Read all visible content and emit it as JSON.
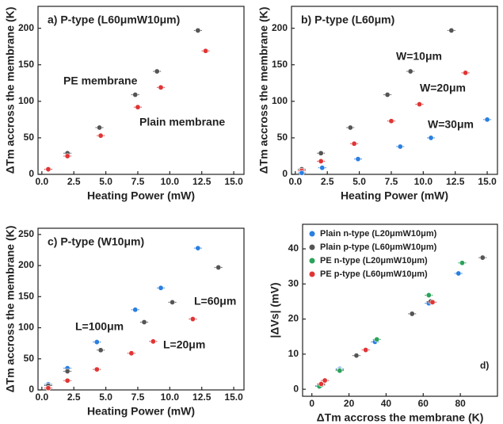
{
  "chart_data": [
    {
      "type": "scatter",
      "title": "a) P-type (L60μmW10μm)",
      "xlabel": "Heating Power (mW)",
      "ylabel": "ΔTm accross the membrane (K)",
      "xlim": [
        -0.3,
        15.8
      ],
      "ylim": [
        0,
        230
      ],
      "xticks": [
        {
          "value": 0,
          "label": "0.0"
        },
        {
          "value": 2.5,
          "label": "2.5"
        },
        {
          "value": 5,
          "label": "5.0"
        },
        {
          "value": 7.5,
          "label": "7.5"
        },
        {
          "value": 10,
          "label": "10.0"
        },
        {
          "value": 12.5,
          "label": "12.5"
        },
        {
          "value": 15,
          "label": "15.0"
        }
      ],
      "yticks": [
        0,
        50,
        100,
        150,
        200
      ],
      "series": [
        {
          "name": "PE membrane",
          "color": "#555555",
          "x": [
            0.5,
            2,
            4.5,
            7.3,
            9,
            12.2
          ],
          "values": [
            7,
            29,
            64,
            109,
            141,
            197
          ]
        },
        {
          "name": "Plain membrane",
          "color": "#e03535",
          "x": [
            0.5,
            2,
            4.6,
            7.5,
            9.3,
            12.8
          ],
          "values": [
            7,
            25,
            53,
            92,
            119,
            169
          ]
        }
      ]
    },
    {
      "type": "scatter",
      "title": "b) P-type (L60μm)",
      "xlabel": "Heating Power (mW)",
      "ylabel": "ΔTm accross the membrane (K)",
      "xlim": [
        -0.3,
        15.8
      ],
      "ylim": [
        0,
        230
      ],
      "xticks": [
        {
          "value": 0,
          "label": "0.0"
        },
        {
          "value": 2.5,
          "label": "2.5"
        },
        {
          "value": 5,
          "label": "5.0"
        },
        {
          "value": 7.5,
          "label": "7.5"
        },
        {
          "value": 10,
          "label": "10.0"
        },
        {
          "value": 12.5,
          "label": "12.5"
        },
        {
          "value": 15,
          "label": "15.0"
        }
      ],
      "yticks": [
        0,
        50,
        100,
        150,
        200
      ],
      "series": [
        {
          "name": "W=10μm",
          "color": "#555555",
          "x": [
            0.5,
            2,
            4.3,
            7.2,
            9,
            12.2
          ],
          "values": [
            7,
            29,
            64,
            109,
            141,
            197
          ]
        },
        {
          "name": "W=20μm",
          "color": "#e03535",
          "x": [
            0.5,
            2,
            4.6,
            7.5,
            9.7,
            13.3
          ],
          "values": [
            5,
            18,
            42,
            73,
            96,
            139
          ]
        },
        {
          "name": "W=30μm",
          "color": "#2a7fe0",
          "x": [
            0.5,
            2.1,
            4.9,
            8.2,
            10.6,
            15
          ],
          "values": [
            2,
            9,
            21,
            38,
            50,
            75
          ]
        }
      ]
    },
    {
      "type": "scatter",
      "title": "c) P-type (W10μm)",
      "xlabel": "Heating Power (mW)",
      "ylabel": "ΔTm accross the membrane (K)",
      "xlim": [
        -0.3,
        15.8
      ],
      "ylim": [
        0,
        260
      ],
      "xticks": [
        {
          "value": 0,
          "label": "0.0"
        },
        {
          "value": 2.5,
          "label": "2.5"
        },
        {
          "value": 5,
          "label": "5.0"
        },
        {
          "value": 7.5,
          "label": "7.5"
        },
        {
          "value": 10,
          "label": "10.0"
        },
        {
          "value": 12.5,
          "label": "12.5"
        },
        {
          "value": 15,
          "label": "15.0"
        }
      ],
      "yticks": [
        0,
        50,
        100,
        150,
        200,
        250
      ],
      "series": [
        {
          "name": "L=100μm",
          "color": "#2a7fe0",
          "x": [
            0.5,
            2,
            4.3,
            7.3,
            9.3,
            12.2
          ],
          "values": [
            9,
            35,
            77,
            129,
            164,
            228
          ]
        },
        {
          "name": "L=60μm",
          "color": "#555555",
          "x": [
            0.5,
            2,
            4.6,
            8,
            10.2,
            13.8
          ],
          "values": [
            7,
            30,
            64,
            109,
            141,
            197
          ]
        },
        {
          "name": "L=20μm",
          "color": "#e03535",
          "x": [
            0.5,
            2,
            4.3,
            7,
            8.7,
            11.8
          ],
          "values": [
            3,
            15,
            33,
            59,
            78,
            114
          ]
        }
      ]
    },
    {
      "type": "scatter",
      "annotation": "d)",
      "xlabel": "ΔTm accross the membrane (K)",
      "ylabel": "|ΔVs| (mV)",
      "xlim": [
        -5,
        100
      ],
      "ylim": [
        -2,
        47
      ],
      "xticks": [
        0,
        20,
        40,
        60,
        80
      ],
      "yticks": [
        0,
        10,
        20,
        30,
        40
      ],
      "legend": "upper left",
      "series": [
        {
          "name": "Plain n-type (L20μmW10μm)",
          "color": "#2a7fe0",
          "x": [
            4,
            15,
            34,
            63,
            79
          ],
          "values": [
            1,
            5.8,
            13.5,
            24.5,
            33
          ]
        },
        {
          "name": "Plain p-type (L60μmW10μm)",
          "color": "#555555",
          "x": [
            5,
            15,
            24,
            54,
            64,
            92
          ],
          "values": [
            1.2,
            5.5,
            9.6,
            21.5,
            25,
            37.5
          ]
        },
        {
          "name": "PE n-type (L20μmW10μm)",
          "color": "#2aa35a",
          "x": [
            4,
            15,
            35,
            63,
            81
          ],
          "values": [
            0.8,
            5.3,
            14.2,
            26.8,
            36
          ]
        },
        {
          "name": "PE p-type (L60μmW10μm)",
          "color": "#e03535",
          "x": [
            5,
            7,
            29,
            65
          ],
          "values": [
            1.5,
            2.5,
            11.2,
            24.8
          ]
        }
      ]
    }
  ]
}
